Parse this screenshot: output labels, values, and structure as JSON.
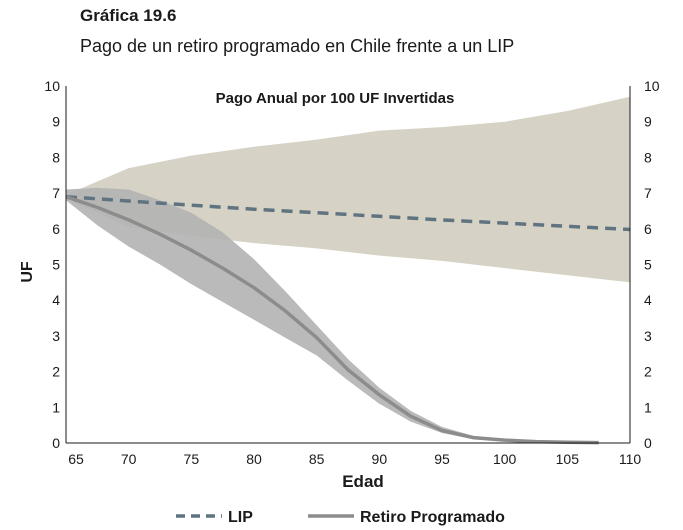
{
  "header": {
    "title": "Gráfica 19.6",
    "subtitle": "Pago de un retiro programado en Chile frente a un LIP"
  },
  "chart_data": {
    "type": "line",
    "title": "Gráfica 19.6",
    "subtitle": "Pago de un retiro programado en Chile frente a un LIP",
    "annotation": "Pago Anual por 100 UF Invertidas",
    "xlabel": "Edad",
    "ylabel": "UF",
    "xlim": [
      65,
      110
    ],
    "ylim": [
      0,
      10
    ],
    "x_ticks": [
      65,
      70,
      75,
      80,
      85,
      90,
      95,
      100,
      105,
      110
    ],
    "y_ticks": [
      0,
      1,
      2,
      3,
      4,
      5,
      6,
      7,
      8,
      9,
      10
    ],
    "series": [
      {
        "name": "LIP",
        "style": "dashed",
        "color": "#5f7480",
        "x": [
          65,
          70,
          75,
          80,
          85,
          90,
          95,
          100,
          105,
          110
        ],
        "values": [
          6.9,
          6.78,
          6.66,
          6.55,
          6.45,
          6.35,
          6.25,
          6.16,
          6.07,
          5.98
        ]
      },
      {
        "name": "Retiro Programado",
        "style": "solid",
        "color": "#8c8c8c",
        "x": [
          65,
          67.5,
          70,
          72.5,
          75,
          77.5,
          80,
          82.5,
          85,
          87.5,
          90,
          92.5,
          95,
          97.5,
          100,
          102.5,
          105,
          107.5
        ],
        "values": [
          6.9,
          6.6,
          6.25,
          5.85,
          5.4,
          4.9,
          4.35,
          3.7,
          2.95,
          2.05,
          1.35,
          0.75,
          0.35,
          0.15,
          0.08,
          0.04,
          0.02,
          0.01
        ]
      }
    ],
    "bands": [
      {
        "name": "LIP range",
        "color": "#d6d3c6",
        "x": [
          65,
          70,
          75,
          80,
          85,
          90,
          95,
          100,
          105,
          110
        ],
        "upper": [
          6.95,
          7.7,
          8.05,
          8.3,
          8.5,
          8.75,
          8.85,
          9.0,
          9.3,
          9.7
        ],
        "lower": [
          6.85,
          6.05,
          5.8,
          5.6,
          5.45,
          5.25,
          5.1,
          4.9,
          4.7,
          4.5
        ]
      },
      {
        "name": "Retiro Programado range",
        "color": "#b3b3b3",
        "x": [
          65,
          67.5,
          70,
          72.5,
          75,
          77.5,
          80,
          82.5,
          85,
          87.5,
          90,
          92.5,
          95,
          97.5,
          100,
          102.5,
          105,
          107.5
        ],
        "upper": [
          7.1,
          7.15,
          7.1,
          6.8,
          6.45,
          5.9,
          5.15,
          4.25,
          3.3,
          2.35,
          1.55,
          0.9,
          0.45,
          0.2,
          0.12,
          0.06,
          0.03,
          0.01
        ],
        "lower": [
          6.8,
          6.1,
          5.5,
          5.0,
          4.45,
          3.95,
          3.45,
          2.95,
          2.45,
          1.75,
          1.1,
          0.6,
          0.28,
          0.1,
          0.05,
          0.02,
          0.01,
          0.0
        ]
      }
    ],
    "legend": [
      {
        "label": "LIP",
        "style": "dashed",
        "color": "#5f7480"
      },
      {
        "label": "Retiro Programado",
        "style": "solid",
        "color": "#8c8c8c"
      }
    ],
    "legend_position": "bottom",
    "right_axis": "mirrors left axis",
    "grid": false
  }
}
